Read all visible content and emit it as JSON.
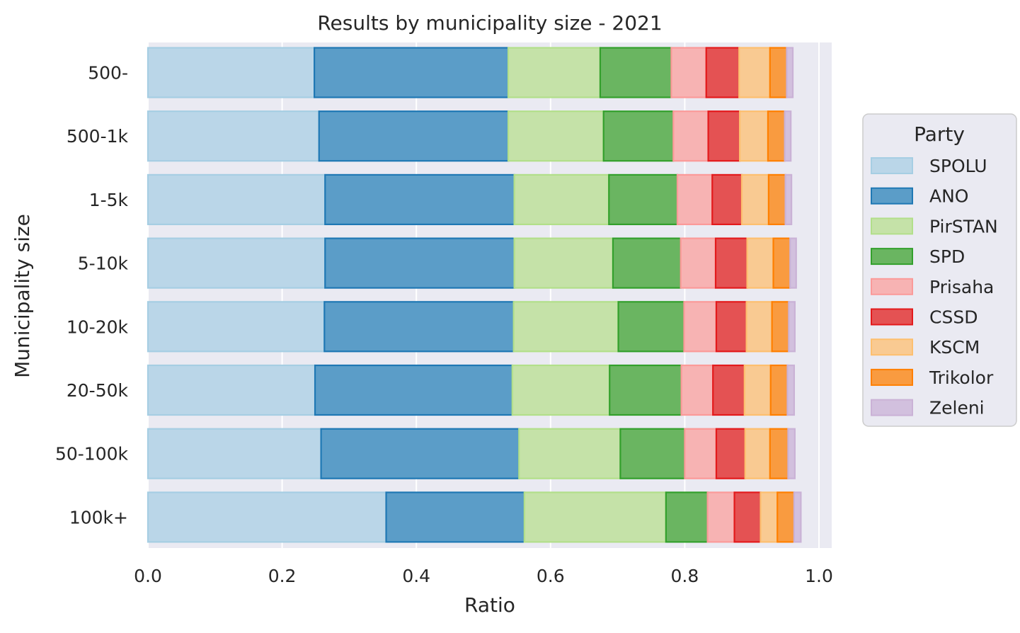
{
  "chart_data": {
    "type": "bar",
    "orientation": "horizontal",
    "stacked": true,
    "title": "Results by municipality size - 2021",
    "xlabel": "Ratio",
    "ylabel": "Municipality size",
    "xlim": [
      0,
      1.02
    ],
    "xticks": [
      "0.0",
      "0.2",
      "0.4",
      "0.6",
      "0.8",
      "1.0"
    ],
    "grid": true,
    "legend_title": "Party",
    "legend_position": "right",
    "categories": [
      "500-",
      "500-1k",
      "1-5k",
      "5-10k",
      "10-20k",
      "20-50k",
      "50-100k",
      "100k+"
    ],
    "series": [
      {
        "name": "SPOLU",
        "fill": "#bad6e8",
        "stroke": "#a6cee3",
        "values": [
          0.248,
          0.255,
          0.264,
          0.264,
          0.263,
          0.249,
          0.258,
          0.355
        ]
      },
      {
        "name": "ANO",
        "fill": "#5b9dc8",
        "stroke": "#1f78b4",
        "values": [
          0.289,
          0.282,
          0.282,
          0.282,
          0.282,
          0.294,
          0.295,
          0.206
        ]
      },
      {
        "name": "PirSTAN",
        "fill": "#c5e2a8",
        "stroke": "#b2df8a",
        "values": [
          0.137,
          0.142,
          0.141,
          0.147,
          0.156,
          0.145,
          0.151,
          0.211
        ]
      },
      {
        "name": "SPD",
        "fill": "#6ab561",
        "stroke": "#33a02c",
        "values": [
          0.106,
          0.104,
          0.102,
          0.101,
          0.098,
          0.107,
          0.096,
          0.062
        ]
      },
      {
        "name": "Prisaha",
        "fill": "#f7b3b3",
        "stroke": "#fb9a99",
        "values": [
          0.052,
          0.052,
          0.052,
          0.052,
          0.048,
          0.047,
          0.047,
          0.04
        ]
      },
      {
        "name": "CSSD",
        "fill": "#e45253",
        "stroke": "#e31a1c",
        "values": [
          0.049,
          0.047,
          0.044,
          0.047,
          0.045,
          0.047,
          0.043,
          0.039
        ]
      },
      {
        "name": "KSCM",
        "fill": "#f9ca92",
        "stroke": "#fdbf6f",
        "values": [
          0.046,
          0.042,
          0.04,
          0.039,
          0.038,
          0.039,
          0.037,
          0.025
        ]
      },
      {
        "name": "Trikolor",
        "fill": "#f99b40",
        "stroke": "#ff7f00",
        "values": [
          0.025,
          0.025,
          0.025,
          0.025,
          0.025,
          0.025,
          0.027,
          0.025
        ]
      },
      {
        "name": "Zeleni",
        "fill": "#d2c0de",
        "stroke": "#cab2d6",
        "values": [
          0.009,
          0.009,
          0.009,
          0.009,
          0.009,
          0.01,
          0.01,
          0.01
        ]
      }
    ]
  }
}
